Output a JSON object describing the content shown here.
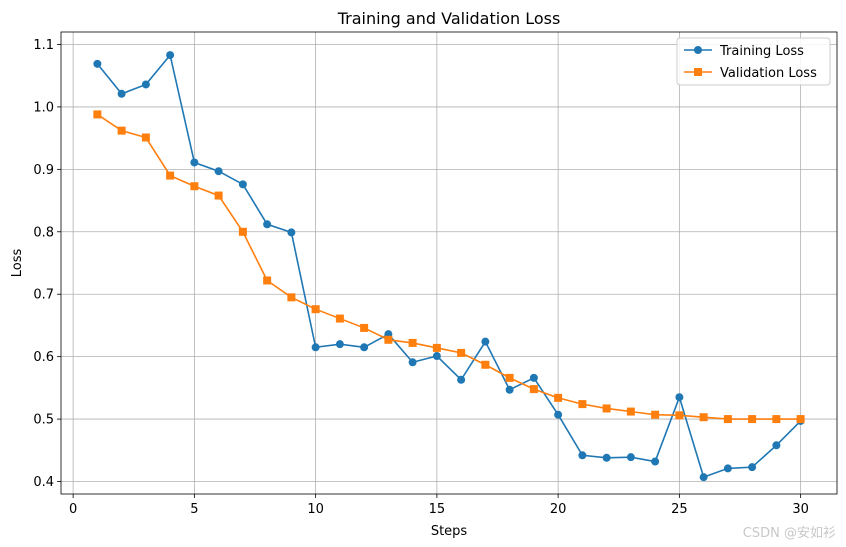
{
  "chart_data": {
    "type": "line",
    "title": "Training and Validation Loss",
    "xlabel": "Steps",
    "ylabel": "Loss",
    "xlim": [
      -0.5,
      31.5
    ],
    "ylim": [
      0.38,
      1.12
    ],
    "xticks": [
      0,
      5,
      10,
      15,
      20,
      25,
      30
    ],
    "yticks": [
      0.4,
      0.5,
      0.6,
      0.7,
      0.8,
      0.9,
      1.0,
      1.1
    ],
    "grid": true,
    "legend_position": "top-right",
    "x": [
      1,
      2,
      3,
      4,
      5,
      6,
      7,
      8,
      9,
      10,
      11,
      12,
      13,
      14,
      15,
      16,
      17,
      18,
      19,
      20,
      21,
      22,
      23,
      24,
      25,
      26,
      27,
      28,
      29,
      30
    ],
    "series": [
      {
        "name": "Training Loss",
        "color": "#1f77b4",
        "marker": "circle",
        "values": [
          1.069,
          1.021,
          1.036,
          1.083,
          0.911,
          0.897,
          0.876,
          0.812,
          0.799,
          0.615,
          0.62,
          0.615,
          0.636,
          0.591,
          0.601,
          0.563,
          0.624,
          0.547,
          0.566,
          0.507,
          0.442,
          0.438,
          0.439,
          0.432,
          0.535,
          0.407,
          0.421,
          0.423,
          0.458,
          0.497
        ]
      },
      {
        "name": "Validation Loss",
        "color": "#ff7f0e",
        "marker": "square",
        "values": [
          0.988,
          0.962,
          0.951,
          0.89,
          0.873,
          0.858,
          0.8,
          0.722,
          0.695,
          0.676,
          0.661,
          0.646,
          0.627,
          0.622,
          0.614,
          0.606,
          0.587,
          0.566,
          0.548,
          0.534,
          0.524,
          0.517,
          0.512,
          0.507,
          0.506,
          0.503,
          0.5,
          0.5,
          0.5,
          0.5
        ]
      }
    ]
  },
  "watermark": "CSDN @安如衫"
}
